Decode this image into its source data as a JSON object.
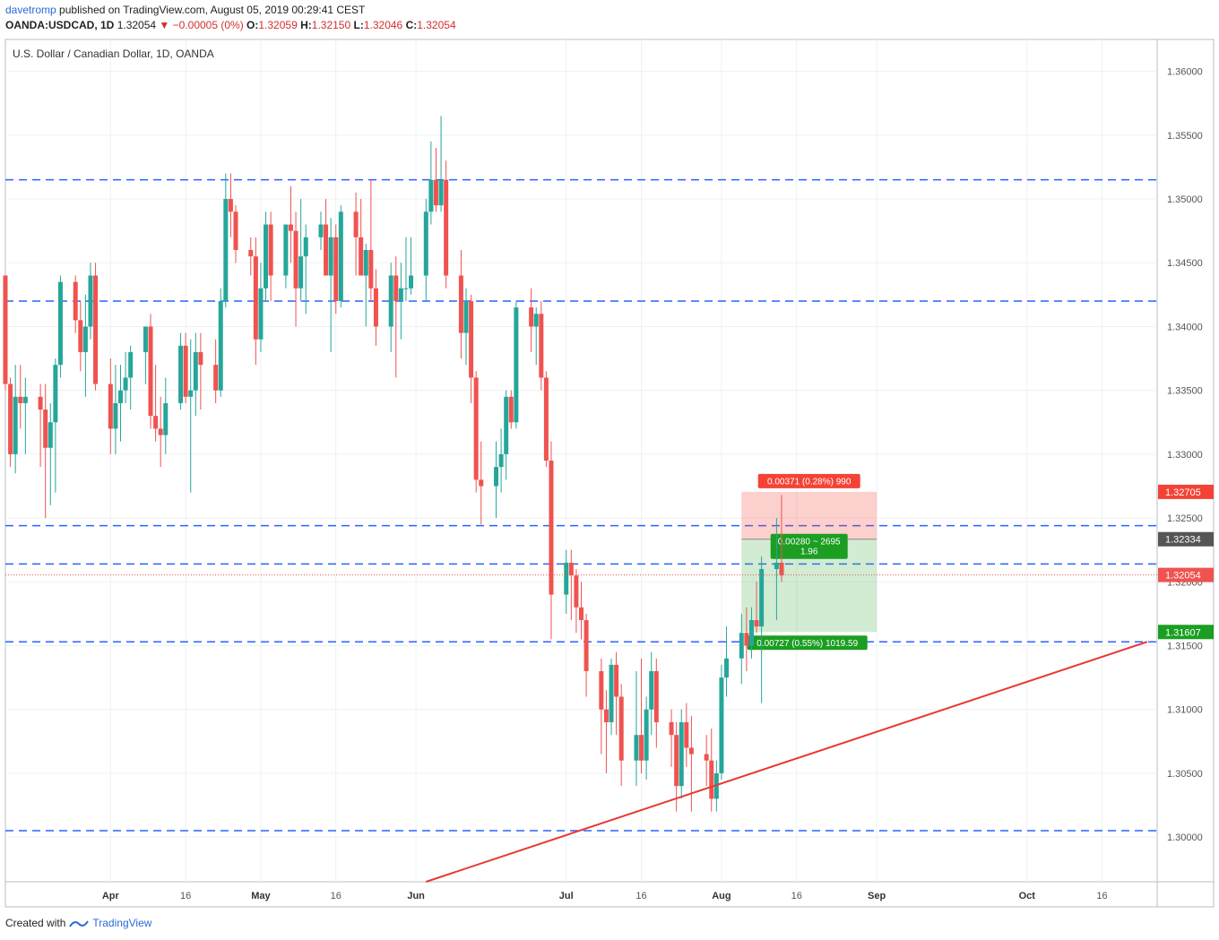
{
  "header": {
    "user": "davetromp",
    "published_text": "published on TradingView.com, August 05, 2019 00:29:41 CEST",
    "symbol": "OANDA:USDCAD, 1D",
    "last": "1.32054",
    "change": "▼ −0.00005 (0%)",
    "o_label": "O:",
    "o": "1.32059",
    "h_label": "H:",
    "h": "1.32150",
    "l_label": "L:",
    "l": "1.32046",
    "c_label": "C:",
    "c": "1.32054"
  },
  "footer": {
    "created_with": "Created with",
    "brand": "TradingView"
  },
  "colors": {
    "up": "#26a69a",
    "down": "#ef5350",
    "level": "#2962ff",
    "trend": "#e53935",
    "stop": "#f44336",
    "target": "#1b9e22"
  },
  "chart_data": {
    "type": "candlestick",
    "title": "U.S. Dollar / Canadian Dollar, 1D, OANDA",
    "ylim": [
      1.2965,
      1.3625
    ],
    "xlim": [
      "2019-03-11",
      "2019-10-27"
    ],
    "y_ticks": [
      "1.36000",
      "1.35500",
      "1.35000",
      "1.34500",
      "1.34000",
      "1.33500",
      "1.33000",
      "1.32500",
      "1.32000",
      "1.31500",
      "1.31000",
      "1.30500",
      "1.30000"
    ],
    "y_tick_values": [
      1.36,
      1.355,
      1.35,
      1.345,
      1.34,
      1.335,
      1.33,
      1.325,
      1.32,
      1.315,
      1.31,
      1.305,
      1.3
    ],
    "x_ticks": [
      {
        "label": "Apr",
        "date": "2019-04-01",
        "month": true
      },
      {
        "label": "16",
        "date": "2019-04-16",
        "month": false
      },
      {
        "label": "May",
        "date": "2019-05-01",
        "month": true
      },
      {
        "label": "16",
        "date": "2019-05-16",
        "month": false
      },
      {
        "label": "Jun",
        "date": "2019-06-01",
        "month": true
      },
      {
        "label": "Jul",
        "date": "2019-07-01",
        "month": true
      },
      {
        "label": "16",
        "date": "2019-07-16",
        "month": false
      },
      {
        "label": "Aug",
        "date": "2019-08-01",
        "month": true
      },
      {
        "label": "16",
        "date": "2019-08-16",
        "month": false
      },
      {
        "label": "Sep",
        "date": "2019-09-01",
        "month": true
      },
      {
        "label": "Oct",
        "date": "2019-10-01",
        "month": true
      },
      {
        "label": "16",
        "date": "2019-10-16",
        "month": false
      }
    ],
    "horizontal_levels": [
      1.3515,
      1.342,
      1.3244,
      1.3214,
      1.3153,
      1.3005
    ],
    "trendline": {
      "from": [
        "2019-06-03",
        1.2965
      ],
      "to": [
        "2019-10-25",
        1.3153
      ]
    },
    "price_labels": [
      {
        "text": "1.32705",
        "value": 1.32705,
        "color": "#f44336"
      },
      {
        "text": "1.32334",
        "value": 1.32334,
        "color": "#555555"
      },
      {
        "text": "1.32054",
        "value": 1.32054,
        "color": "#ef5350"
      },
      {
        "text": "1.31607",
        "value": 1.31607,
        "color": "#1b9e22"
      }
    ],
    "position": {
      "start": "2019-08-05",
      "end": "2019-09-01",
      "entry": 1.32334,
      "stop": 1.32705,
      "target": 1.31607,
      "stop_label": "0.00371 (0.28%) 990",
      "center_label_1": "0.00280 ~ 2695",
      "center_label_2": "1.96",
      "target_label": "0.00727 (0.55%) 1019.59"
    },
    "last_price": 1.32054,
    "candles": [
      [
        "2019-03-11",
        1.344,
        1.344,
        1.335,
        1.3355
      ],
      [
        "2019-03-12",
        1.3355,
        1.336,
        1.329,
        1.33
      ],
      [
        "2019-03-13",
        1.33,
        1.337,
        1.3285,
        1.3345
      ],
      [
        "2019-03-14",
        1.3345,
        1.337,
        1.332,
        1.334
      ],
      [
        "2019-03-15",
        1.334,
        1.336,
        1.33,
        1.3345
      ],
      [
        "2019-03-18",
        1.3345,
        1.3355,
        1.329,
        1.3335
      ],
      [
        "2019-03-19",
        1.3335,
        1.3355,
        1.325,
        1.3305
      ],
      [
        "2019-03-20",
        1.3305,
        1.334,
        1.326,
        1.3325
      ],
      [
        "2019-03-21",
        1.3325,
        1.3375,
        1.327,
        1.337
      ],
      [
        "2019-03-22",
        1.337,
        1.344,
        1.336,
        1.3435
      ],
      [
        "2019-03-25",
        1.3435,
        1.344,
        1.3395,
        1.3405
      ],
      [
        "2019-03-26",
        1.3405,
        1.342,
        1.3365,
        1.338
      ],
      [
        "2019-03-27",
        1.338,
        1.3425,
        1.3345,
        1.34
      ],
      [
        "2019-03-28",
        1.34,
        1.345,
        1.339,
        1.344
      ],
      [
        "2019-03-29",
        1.344,
        1.345,
        1.335,
        1.3355
      ],
      [
        "2019-04-01",
        1.3355,
        1.3375,
        1.33,
        1.332
      ],
      [
        "2019-04-02",
        1.332,
        1.337,
        1.33,
        1.334
      ],
      [
        "2019-04-03",
        1.334,
        1.337,
        1.331,
        1.335
      ],
      [
        "2019-04-04",
        1.335,
        1.338,
        1.334,
        1.336
      ],
      [
        "2019-04-05",
        1.336,
        1.3385,
        1.3335,
        1.338
      ],
      [
        "2019-04-08",
        1.338,
        1.34,
        1.3355,
        1.34
      ],
      [
        "2019-04-09",
        1.34,
        1.341,
        1.332,
        1.333
      ],
      [
        "2019-04-10",
        1.333,
        1.337,
        1.331,
        1.332
      ],
      [
        "2019-04-11",
        1.332,
        1.3345,
        1.329,
        1.3315
      ],
      [
        "2019-04-12",
        1.3315,
        1.336,
        1.33,
        1.334
      ],
      [
        "2019-04-15",
        1.334,
        1.3395,
        1.3335,
        1.3385
      ],
      [
        "2019-04-16",
        1.3385,
        1.3395,
        1.334,
        1.3345
      ],
      [
        "2019-04-17",
        1.3345,
        1.339,
        1.327,
        1.335
      ],
      [
        "2019-04-18",
        1.335,
        1.3395,
        1.333,
        1.338
      ],
      [
        "2019-04-19",
        1.338,
        1.3395,
        1.3335,
        1.337
      ],
      [
        "2019-04-22",
        1.337,
        1.339,
        1.334,
        1.335
      ],
      [
        "2019-04-23",
        1.335,
        1.343,
        1.3345,
        1.342
      ],
      [
        "2019-04-24",
        1.342,
        1.352,
        1.3415,
        1.35
      ],
      [
        "2019-04-25",
        1.35,
        1.352,
        1.347,
        1.349
      ],
      [
        "2019-04-26",
        1.349,
        1.3495,
        1.345,
        1.346
      ],
      [
        "2019-04-29",
        1.346,
        1.347,
        1.344,
        1.3455
      ],
      [
        "2019-04-30",
        1.3455,
        1.347,
        1.337,
        1.339
      ],
      [
        "2019-05-01",
        1.339,
        1.345,
        1.338,
        1.343
      ],
      [
        "2019-05-02",
        1.343,
        1.349,
        1.342,
        1.348
      ],
      [
        "2019-05-03",
        1.348,
        1.349,
        1.342,
        1.344
      ],
      [
        "2019-05-06",
        1.344,
        1.348,
        1.343,
        1.348
      ],
      [
        "2019-05-07",
        1.348,
        1.351,
        1.345,
        1.3475
      ],
      [
        "2019-05-08",
        1.3475,
        1.349,
        1.34,
        1.343
      ],
      [
        "2019-05-09",
        1.343,
        1.35,
        1.342,
        1.3455
      ],
      [
        "2019-05-10",
        1.3455,
        1.348,
        1.341,
        1.347
      ],
      [
        "2019-05-13",
        1.347,
        1.349,
        1.346,
        1.348
      ],
      [
        "2019-05-14",
        1.348,
        1.35,
        1.344,
        1.344
      ],
      [
        "2019-05-15",
        1.344,
        1.3485,
        1.338,
        1.347
      ],
      [
        "2019-05-16",
        1.347,
        1.348,
        1.341,
        1.342
      ],
      [
        "2019-05-17",
        1.342,
        1.3495,
        1.3415,
        1.349
      ],
      [
        "2019-05-20",
        1.349,
        1.3505,
        1.344,
        1.347
      ],
      [
        "2019-05-21",
        1.347,
        1.35,
        1.344,
        1.344
      ],
      [
        "2019-05-22",
        1.344,
        1.3465,
        1.34,
        1.346
      ],
      [
        "2019-05-23",
        1.346,
        1.3515,
        1.342,
        1.343
      ],
      [
        "2019-05-24",
        1.343,
        1.3445,
        1.3385,
        1.34
      ],
      [
        "2019-05-27",
        1.34,
        1.345,
        1.338,
        1.344
      ],
      [
        "2019-05-28",
        1.344,
        1.3455,
        1.336,
        1.342
      ],
      [
        "2019-05-29",
        1.342,
        1.345,
        1.339,
        1.343
      ],
      [
        "2019-05-30",
        1.343,
        1.347,
        1.342,
        1.343
      ],
      [
        "2019-05-31",
        1.343,
        1.347,
        1.3425,
        1.344
      ],
      [
        "2019-06-03",
        1.344,
        1.35,
        1.342,
        1.349
      ],
      [
        "2019-06-04",
        1.349,
        1.3545,
        1.348,
        1.3515
      ],
      [
        "2019-06-05",
        1.3515,
        1.354,
        1.349,
        1.3495
      ],
      [
        "2019-06-06",
        1.3495,
        1.3565,
        1.349,
        1.3515
      ],
      [
        "2019-06-07",
        1.3515,
        1.353,
        1.343,
        1.344
      ],
      [
        "2019-06-10",
        1.344,
        1.346,
        1.3375,
        1.3395
      ],
      [
        "2019-06-11",
        1.3395,
        1.343,
        1.337,
        1.342
      ],
      [
        "2019-06-12",
        1.342,
        1.3425,
        1.334,
        1.336
      ],
      [
        "2019-06-13",
        1.336,
        1.3365,
        1.327,
        1.328
      ],
      [
        "2019-06-14",
        1.328,
        1.331,
        1.3245,
        1.3275
      ],
      [
        "2019-06-17",
        1.3275,
        1.331,
        1.325,
        1.329
      ],
      [
        "2019-06-18",
        1.329,
        1.332,
        1.327,
        1.33
      ],
      [
        "2019-06-19",
        1.33,
        1.335,
        1.328,
        1.3345
      ],
      [
        "2019-06-20",
        1.3345,
        1.335,
        1.332,
        1.3325
      ],
      [
        "2019-06-21",
        1.3325,
        1.342,
        1.332,
        1.3415
      ],
      [
        "2019-06-24",
        1.3415,
        1.343,
        1.338,
        1.34
      ],
      [
        "2019-06-25",
        1.34,
        1.3415,
        1.337,
        1.341
      ],
      [
        "2019-06-26",
        1.341,
        1.342,
        1.335,
        1.336
      ],
      [
        "2019-06-27",
        1.336,
        1.3365,
        1.329,
        1.3295
      ],
      [
        "2019-06-28",
        1.3295,
        1.331,
        1.3155,
        1.319
      ],
      [
        "2019-07-01",
        1.319,
        1.3225,
        1.3175,
        1.3215
      ],
      [
        "2019-07-02",
        1.3215,
        1.3225,
        1.317,
        1.3205
      ],
      [
        "2019-07-03",
        1.3205,
        1.321,
        1.316,
        1.318
      ],
      [
        "2019-07-04",
        1.318,
        1.32,
        1.3155,
        1.317
      ],
      [
        "2019-07-05",
        1.317,
        1.3175,
        1.311,
        1.313
      ],
      [
        "2019-07-08",
        1.313,
        1.314,
        1.3065,
        1.31
      ],
      [
        "2019-07-09",
        1.31,
        1.3115,
        1.305,
        1.309
      ],
      [
        "2019-07-10",
        1.309,
        1.314,
        1.308,
        1.3135
      ],
      [
        "2019-07-11",
        1.3135,
        1.3145,
        1.308,
        1.311
      ],
      [
        "2019-07-12",
        1.311,
        1.312,
        1.304,
        1.306
      ],
      [
        "2019-07-15",
        1.306,
        1.313,
        1.304,
        1.308
      ],
      [
        "2019-07-16",
        1.308,
        1.314,
        1.305,
        1.306
      ],
      [
        "2019-07-17",
        1.306,
        1.311,
        1.3045,
        1.31
      ],
      [
        "2019-07-18",
        1.31,
        1.3145,
        1.308,
        1.313
      ],
      [
        "2019-07-19",
        1.313,
        1.314,
        1.307,
        1.309
      ],
      [
        "2019-07-22",
        1.309,
        1.31,
        1.3055,
        1.308
      ],
      [
        "2019-07-23",
        1.308,
        1.309,
        1.302,
        1.304
      ],
      [
        "2019-07-24",
        1.304,
        1.31,
        1.303,
        1.309
      ],
      [
        "2019-07-25",
        1.309,
        1.3105,
        1.3055,
        1.307
      ],
      [
        "2019-07-26",
        1.307,
        1.3095,
        1.302,
        1.3065
      ],
      [
        "2019-07-29",
        1.3065,
        1.308,
        1.304,
        1.306
      ],
      [
        "2019-07-30",
        1.306,
        1.3085,
        1.302,
        1.303
      ],
      [
        "2019-07-31",
        1.303,
        1.306,
        1.302,
        1.305
      ],
      [
        "2019-08-01",
        1.305,
        1.3135,
        1.3045,
        1.3125
      ],
      [
        "2019-08-02",
        1.3125,
        1.3165,
        1.311,
        1.314
      ],
      [
        "2019-08-05",
        1.314,
        1.3175,
        1.312,
        1.316
      ],
      [
        "2019-08-06",
        1.316,
        1.318,
        1.313,
        1.315
      ],
      [
        "2019-08-07",
        1.315,
        1.318,
        1.314,
        1.317
      ],
      [
        "2019-08-08",
        1.317,
        1.32,
        1.316,
        1.3165
      ],
      [
        "2019-08-09",
        1.3165,
        1.322,
        1.3105,
        1.321
      ],
      [
        "2019-08-12",
        1.321,
        1.325,
        1.317,
        1.3215
      ],
      [
        "2019-08-13",
        1.3215,
        1.3268,
        1.32,
        1.3205
      ]
    ]
  }
}
